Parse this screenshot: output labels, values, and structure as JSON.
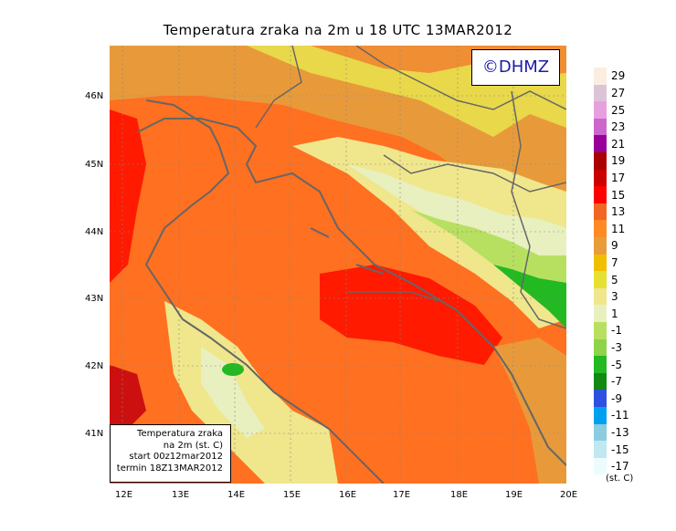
{
  "title": "Temperatura zraka na 2m u 18 UTC 13MAR2012",
  "copyright": "©DHMZ",
  "info": {
    "line1": "Temperatura zraka",
    "line2": "na 2m (st. C)",
    "line3": "start 00z12mar2012",
    "line4": "termin 18Z13MAR2012"
  },
  "y_ticks": [
    "46N",
    "45N",
    "44N",
    "43N",
    "42N",
    "41N"
  ],
  "x_ticks": [
    "12E",
    "13E",
    "14E",
    "15E",
    "16E",
    "17E",
    "18E",
    "19E",
    "20E"
  ],
  "colorbar": {
    "labels": [
      "29",
      "27",
      "25",
      "23",
      "21",
      "19",
      "17",
      "15",
      "13",
      "11",
      "9",
      "7",
      "5",
      "3",
      "1",
      "-1",
      "-3",
      "-5",
      "-7",
      "-9",
      "-11",
      "-13",
      "-15",
      "-17"
    ],
    "colors": [
      "#fbeee0",
      "#ddc3d8",
      "#e6a0e0",
      "#cc66cc",
      "#990099",
      "#aa0000",
      "#cc0000",
      "#ff0000",
      "#f26522",
      "#ff8a24",
      "#e99c3a",
      "#f0c000",
      "#e6e032",
      "#f0e68c",
      "#e8f0c0",
      "#b8e060",
      "#8ed34a",
      "#22b922",
      "#118a11",
      "#2f4fe0",
      "#00a0f0",
      "#8acce0",
      "#c0e8f0",
      "#ecfcfc"
    ],
    "unit": "(st. C)"
  }
}
